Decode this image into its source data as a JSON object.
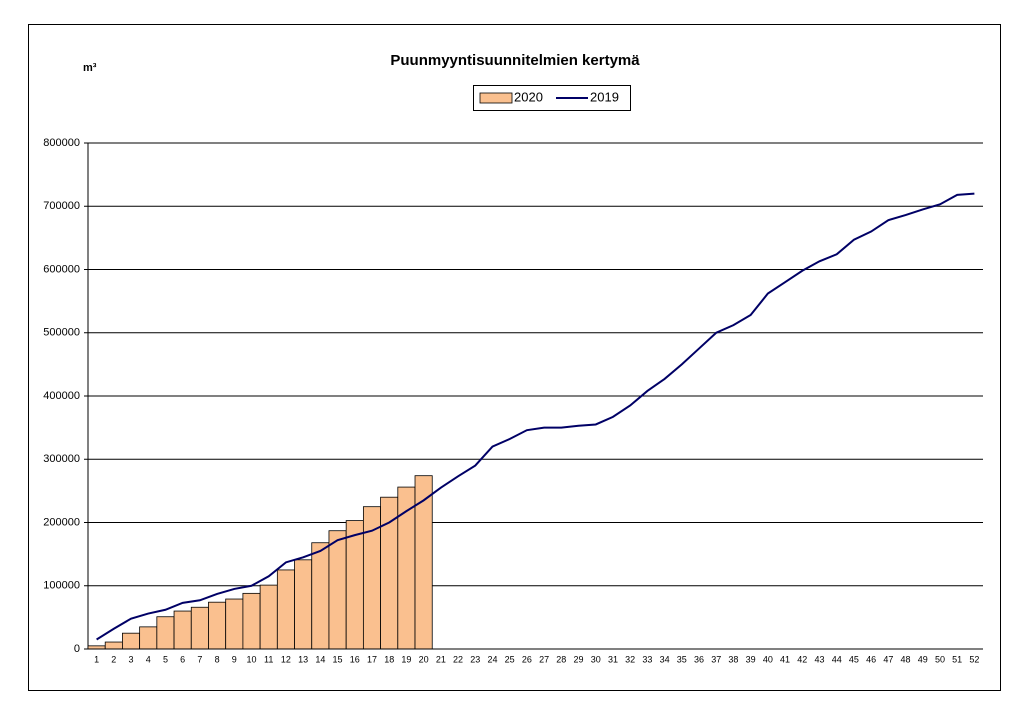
{
  "chart_data": {
    "type": "bar-line",
    "title": "Puunmyyntisuunnitelmien kertymä",
    "y_label": "m³",
    "categories": [
      "1",
      "2",
      "3",
      "4",
      "5",
      "6",
      "7",
      "8",
      "9",
      "10",
      "11",
      "12",
      "13",
      "14",
      "15",
      "16",
      "17",
      "18",
      "19",
      "20",
      "21",
      "22",
      "23",
      "24",
      "25",
      "26",
      "27",
      "28",
      "29",
      "30",
      "31",
      "32",
      "33",
      "34",
      "35",
      "36",
      "37",
      "38",
      "39",
      "40",
      "41",
      "42",
      "43",
      "44",
      "45",
      "46",
      "47",
      "48",
      "49",
      "50",
      "51",
      "52"
    ],
    "series": [
      {
        "name": "2020",
        "type": "bar",
        "color": "#fac08f",
        "values": [
          5000,
          11000,
          25000,
          35000,
          51000,
          60000,
          66000,
          74000,
          79000,
          88000,
          101000,
          125000,
          141000,
          168000,
          187000,
          203000,
          225000,
          240000,
          256000,
          274000,
          null,
          null,
          null,
          null,
          null,
          null,
          null,
          null,
          null,
          null,
          null,
          null,
          null,
          null,
          null,
          null,
          null,
          null,
          null,
          null,
          null,
          null,
          null,
          null,
          null,
          null,
          null,
          null,
          null,
          null,
          null,
          null
        ]
      },
      {
        "name": "2019",
        "type": "line",
        "color": "#000066",
        "values": [
          15000,
          32000,
          48000,
          56000,
          62000,
          73000,
          77000,
          87000,
          95000,
          100000,
          115000,
          137000,
          145000,
          155000,
          172000,
          180000,
          187000,
          200000,
          218000,
          235000,
          255000,
          273000,
          290000,
          320000,
          332000,
          346000,
          350000,
          350000,
          353000,
          355000,
          367000,
          385000,
          408000,
          427000,
          450000,
          475000,
          500000,
          512000,
          528000,
          562000,
          580000,
          598000,
          613000,
          624000,
          647000,
          660000,
          678000,
          686000,
          695000,
          703000,
          718000,
          720000
        ]
      }
    ],
    "ylim": [
      0,
      800000
    ],
    "yticks": [
      0,
      100000,
      200000,
      300000,
      400000,
      500000,
      600000,
      700000,
      800000
    ],
    "grid": true
  }
}
